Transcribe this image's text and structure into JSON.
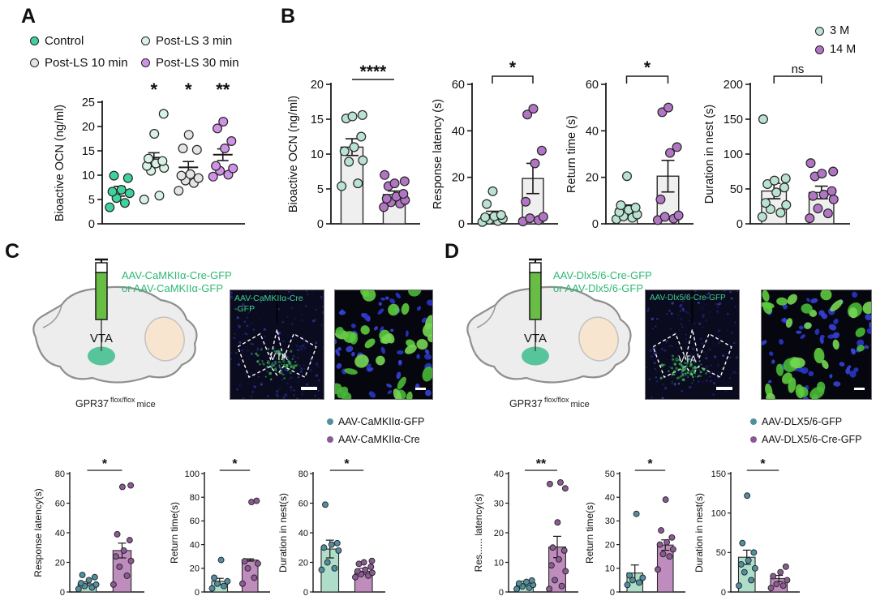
{
  "panels": {
    "A": {
      "label": "A",
      "legend": [
        {
          "label": "Control",
          "color": "#3ed29c"
        },
        {
          "label": "Post-LS 3 min",
          "color": "#d9f2e6"
        },
        {
          "label": "Post-LS 10 min",
          "color": "#e4e4e4"
        },
        {
          "label": "Post-LS 30 min",
          "color": "#d092e6"
        }
      ]
    },
    "B": {
      "label": "B",
      "legend": [
        {
          "label": "3 M",
          "color": "#b9e2d1"
        },
        {
          "label": "14 M",
          "color": "#b175c4"
        }
      ]
    },
    "C": {
      "label": "C",
      "injection_label": {
        "line1": "AAV-CaMKIIα-Cre-GFP",
        "line2": "or AAV-CaMKIIα-GFP",
        "color": "#2eb872"
      },
      "brain": {
        "region_label": "VTA"
      },
      "caption": {
        "gene": "GPR37",
        "sup": "flox/flox",
        "suffix": "mice"
      },
      "image1": {
        "label_line1": "AAV-CaMKIIα-Cre",
        "label_line2": "-GFP",
        "region": "VTA"
      },
      "legend": [
        {
          "label": "AAV-CaMKIIα-GFP",
          "color": "#4f8fa0"
        },
        {
          "label": "AAV-CaMKIIα-Cre",
          "color": "#8a5a93"
        }
      ]
    },
    "D": {
      "label": "D",
      "injection_label": {
        "line1": "AAV-Dlx5/6-Cre-GFP",
        "line2": "or AAV-Dlx5/6-GFP",
        "color": "#2eb872"
      },
      "brain": {
        "region_label": "VTA"
      },
      "caption": {
        "gene": "GPR37",
        "sup": "flox/flox",
        "suffix": "mice"
      },
      "image1": {
        "label_line1": "AAV-Dlx5/6-Cre-GFP",
        "label_line2": "",
        "region": "VTA"
      },
      "legend": [
        {
          "label": "AAV-DLX5/6-GFP",
          "color": "#4f8fa0"
        },
        {
          "label": "AAV-DLX5/6-Cre-GFP",
          "color": "#8a5a93"
        }
      ]
    }
  },
  "chart_data": [
    {
      "id": "A",
      "type": "scatter",
      "title": "",
      "ylabel": "Bioactive OCN (ng/ml)",
      "ylim": [
        0,
        25
      ],
      "yticks": [
        0,
        5,
        10,
        15,
        20,
        25
      ],
      "ml": 62,
      "mt": 32,
      "sig": "per-group",
      "sig_style": "stars-each",
      "groups": [
        {
          "name": "Control",
          "color": "#3ed29c",
          "mean": 6.7,
          "sem": 1.0,
          "sig": "",
          "points": [
            3.4,
            4.3,
            5.3,
            6.3,
            6.6,
            7.0,
            9.4,
            9.9
          ]
        },
        {
          "name": "Post-LS 3 min",
          "color": "#d9f2e6",
          "mean": 13.6,
          "sem": 1.0,
          "sig": "*",
          "points": [
            5.0,
            5.8,
            10.9,
            11.5,
            11.9,
            12.4,
            12.9,
            13.4,
            18.5,
            22.6
          ]
        },
        {
          "name": "Post-LS 10 min",
          "color": "#e4e4e4",
          "mean": 11.6,
          "sem": 1.2,
          "sig": "*",
          "points": [
            6.8,
            8.4,
            8.9,
            9.4,
            9.9,
            10.2,
            15.2,
            15.5,
            18.3
          ]
        },
        {
          "name": "Post-LS 30 min",
          "color": "#d092e6",
          "mean": 14.2,
          "sem": 1.2,
          "sig": "**",
          "points": [
            9.7,
            10.1,
            10.9,
            11.4,
            11.9,
            15.5,
            17.0,
            19.6,
            21.0
          ]
        }
      ]
    },
    {
      "id": "B1",
      "type": "bar",
      "ylabel": "Bioactive OCN (ng/ml)",
      "ylim": [
        0,
        20
      ],
      "yticks": [
        0,
        5,
        10,
        15,
        20
      ],
      "ml": 56,
      "sig": "****",
      "sig_style": "line",
      "groups": [
        {
          "name": "3 M",
          "bar": 11.0,
          "sem": 1.2,
          "fill": "#efefef",
          "point_color": "#b9e2d1",
          "points": [
            5.4,
            5.8,
            8.9,
            9.1,
            10.4,
            11.0,
            12.5,
            15.1,
            15.4,
            15.6
          ]
        },
        {
          "name": "14 M",
          "bar": 4.2,
          "sem": 0.5,
          "fill": "#efefef",
          "point_color": "#b175c4",
          "points": [
            2.4,
            2.9,
            3.1,
            3.4,
            3.6,
            3.9,
            4.3,
            5.4,
            5.8,
            6.1,
            7.0
          ]
        }
      ]
    },
    {
      "id": "B2",
      "type": "bar",
      "ylabel": "Response latency (s)",
      "ylim": [
        0,
        60
      ],
      "yticks": [
        0,
        20,
        40,
        60
      ],
      "ml": 52,
      "sig": "*",
      "sig_style": "bracket",
      "groups": [
        {
          "name": "3 M",
          "bar": 4.0,
          "sem": 1.4,
          "fill": "#efefef",
          "point_color": "#b9e2d1",
          "points": [
            0.8,
            1.2,
            1.8,
            2.2,
            2.8,
            3.2,
            3.8,
            8.5,
            14.0
          ]
        },
        {
          "name": "14 M",
          "bar": 19.5,
          "sem": 6.5,
          "fill": "#efefef",
          "point_color": "#b175c4",
          "points": [
            1.0,
            1.6,
            2.4,
            3.0,
            9.5,
            26.0,
            31.5,
            47.0,
            49.5
          ]
        }
      ]
    },
    {
      "id": "B3",
      "type": "bar",
      "ylabel": "Return time (s)",
      "ylim": [
        0,
        60
      ],
      "yticks": [
        0,
        20,
        40,
        60
      ],
      "ml": 52,
      "sig": "*",
      "sig_style": "bracket",
      "groups": [
        {
          "name": "3 M",
          "bar": 6.5,
          "sem": 1.6,
          "fill": "#efefef",
          "point_color": "#b9e2d1",
          "points": [
            2.0,
            2.6,
            3.2,
            4.0,
            5.0,
            6.0,
            7.0,
            8.0,
            20.5
          ]
        },
        {
          "name": "14 M",
          "bar": 20.5,
          "sem": 6.8,
          "fill": "#efefef",
          "point_color": "#b175c4",
          "points": [
            1.6,
            2.2,
            3.0,
            3.6,
            10.5,
            30.5,
            33.0,
            48.0,
            50.0
          ]
        }
      ]
    },
    {
      "id": "B4",
      "type": "bar",
      "ylabel": "Duration in nest (s)",
      "ylim": [
        0,
        200
      ],
      "yticks": [
        0,
        50,
        100,
        150,
        200
      ],
      "ml": 60,
      "sig": "ns",
      "sig_style": "bracket",
      "groups": [
        {
          "name": "3 M",
          "bar": 47,
          "sem": 11,
          "fill": "#efefef",
          "point_color": "#b9e2d1",
          "points": [
            10,
            16,
            21,
            27,
            30,
            45,
            52,
            57,
            62,
            65,
            150
          ]
        },
        {
          "name": "14 M",
          "bar": 45,
          "sem": 9,
          "fill": "#efefef",
          "point_color": "#b175c4",
          "points": [
            8,
            15,
            22,
            35,
            40,
            42,
            47,
            68,
            72,
            75,
            87
          ]
        }
      ]
    },
    {
      "id": "C1",
      "type": "bar",
      "small": true,
      "ylabel": "Response latency(s)",
      "ylim": [
        0,
        80
      ],
      "yticks": [
        0,
        20,
        40,
        60,
        80
      ],
      "ml": 46,
      "sig": "*",
      "sig_style": "line",
      "groups": [
        {
          "name": "AAV-CaMKIIα-GFP",
          "bar": 5.5,
          "sem": 1.3,
          "fill": "#aeddca",
          "point_color": "#4f8fa0",
          "points": [
            2,
            3,
            4,
            5,
            6,
            8,
            10,
            11.5
          ]
        },
        {
          "name": "AAV-CaMKIIα-Cre",
          "bar": 28,
          "sem": 5,
          "fill": "#bf8cbe",
          "point_color": "#8a5a93",
          "points": [
            5,
            11,
            17,
            21,
            24,
            28,
            35,
            39,
            71,
            72
          ]
        }
      ]
    },
    {
      "id": "C2",
      "type": "bar",
      "small": true,
      "ylabel": "Return time(s)",
      "ylim": [
        0,
        100
      ],
      "yticks": [
        0,
        20,
        40,
        60,
        80,
        100
      ],
      "ml": 44,
      "sig": "*",
      "sig_style": "line",
      "groups": [
        {
          "name": "AAV-CaMKIIα-GFP",
          "bar": 9,
          "sem": 2.5,
          "fill": "#aeddca",
          "point_color": "#4f8fa0",
          "points": [
            3,
            5,
            7,
            9,
            12,
            27
          ]
        },
        {
          "name": "AAV-CaMKIIα-Cre",
          "bar": 27,
          "sem": 1,
          "fill": "#bf8cbe",
          "point_color": "#8a5a93",
          "points": [
            7,
            12,
            20,
            24,
            26,
            76,
            77
          ]
        }
      ]
    },
    {
      "id": "C3",
      "type": "bar",
      "small": true,
      "ylabel": "Duration in nest(s)",
      "ylim": [
        0,
        80
      ],
      "yticks": [
        0,
        20,
        40,
        60,
        80
      ],
      "ml": 44,
      "sig": "*",
      "sig_style": "line",
      "groups": [
        {
          "name": "AAV-CaMKIIα-GFP",
          "bar": 29,
          "sem": 6,
          "fill": "#aeddca",
          "point_color": "#4f8fa0",
          "points": [
            15,
            16,
            20,
            28,
            30,
            32,
            33,
            59
          ]
        },
        {
          "name": "AAV-CaMKIIα-Cre",
          "bar": 14,
          "sem": 2,
          "fill": "#bf8cbe",
          "point_color": "#8a5a93",
          "points": [
            10,
            11,
            12,
            13,
            14,
            15,
            17,
            19,
            20,
            21
          ]
        }
      ]
    },
    {
      "id": "D1",
      "type": "bar",
      "small": true,
      "ylabel": "Res...... latency(s)",
      "ylim": [
        0,
        40
      ],
      "yticks": [
        0,
        10,
        20,
        30,
        40
      ],
      "ml": 44,
      "sig": "**",
      "sig_style": "line",
      "groups": [
        {
          "name": "AAV-DLX5/6-GFP",
          "bar": 2.8,
          "sem": 0.8,
          "fill": "#aeddca",
          "point_color": "#4f8fa0",
          "points": [
            1,
            1.4,
            1.9,
            2.4,
            2.9,
            3.4,
            3.9
          ]
        },
        {
          "name": "AAV-DLX5/6-Cre-GFP",
          "bar": 15.2,
          "sem": 3.6,
          "fill": "#bf8cbe",
          "point_color": "#8a5a93",
          "points": [
            1,
            2,
            4,
            7,
            9,
            11,
            14,
            15,
            23.5,
            35,
            36.5,
            37
          ]
        }
      ]
    },
    {
      "id": "D2",
      "type": "bar",
      "small": true,
      "ylabel": "Return time(s)",
      "ylim": [
        0,
        50
      ],
      "yticks": [
        0,
        10,
        20,
        30,
        40,
        50
      ],
      "ml": 44,
      "sig": "*",
      "sig_style": "line",
      "groups": [
        {
          "name": "AAV-DLX5/6-GFP",
          "bar": 8,
          "sem": 3.4,
          "fill": "#aeddca",
          "point_color": "#4f8fa0",
          "points": [
            3,
            4,
            5,
            6,
            7,
            33
          ]
        },
        {
          "name": "AAV-DLX5/6-Cre-GFP",
          "bar": 19.8,
          "sem": 2.2,
          "fill": "#bf8cbe",
          "point_color": "#8a5a93",
          "points": [
            9.5,
            15,
            16,
            18,
            20,
            21,
            23,
            26,
            39
          ]
        }
      ]
    },
    {
      "id": "D3",
      "type": "bar",
      "small": true,
      "ylabel": "Duration in nest(s)",
      "ylim": [
        0,
        150
      ],
      "yticks": [
        0,
        50,
        100,
        150
      ],
      "ml": 46,
      "sig": "*",
      "sig_style": "line",
      "groups": [
        {
          "name": "AAV-DLX5/6-GFP",
          "bar": 44,
          "sem": 9,
          "fill": "#aeddca",
          "point_color": "#4f8fa0",
          "points": [
            8,
            15,
            25,
            30,
            35,
            40,
            50,
            62,
            122
          ]
        },
        {
          "name": "AAV-DLX5/6-Cre-GFP",
          "bar": 17,
          "sem": 4,
          "fill": "#bf8cbe",
          "point_color": "#8a5a93",
          "points": [
            5,
            8,
            10,
            15,
            20,
            25,
            32
          ]
        }
      ]
    }
  ]
}
